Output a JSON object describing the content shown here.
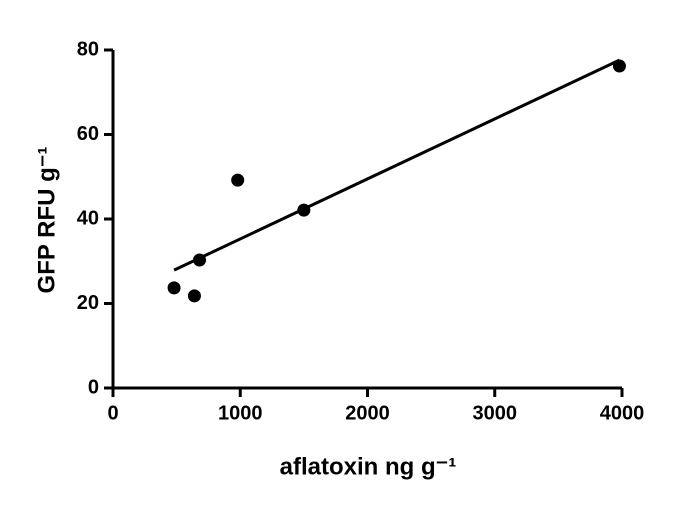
{
  "chart_data": {
    "type": "scatter",
    "xlabel": "aflatoxin ng g⁻¹",
    "ylabel": "GFP RFU g⁻¹",
    "series": [
      {
        "color": "#000000",
        "x": [
          480,
          640,
          680,
          980,
          1500,
          3980
        ],
        "values": [
          23.7,
          21.8,
          30.3,
          49.2,
          42.1,
          76.2
        ]
      }
    ],
    "fit_line": {
      "color": "#000000",
      "x": [
        480,
        3980
      ],
      "values": [
        27.9,
        77.6
      ]
    },
    "xlim": [
      0,
      4000
    ],
    "xticks": [
      0,
      1000,
      2000,
      3000,
      4000
    ],
    "ylim": [
      0,
      80
    ],
    "yticks": [
      0,
      20,
      40,
      60,
      80
    ]
  }
}
